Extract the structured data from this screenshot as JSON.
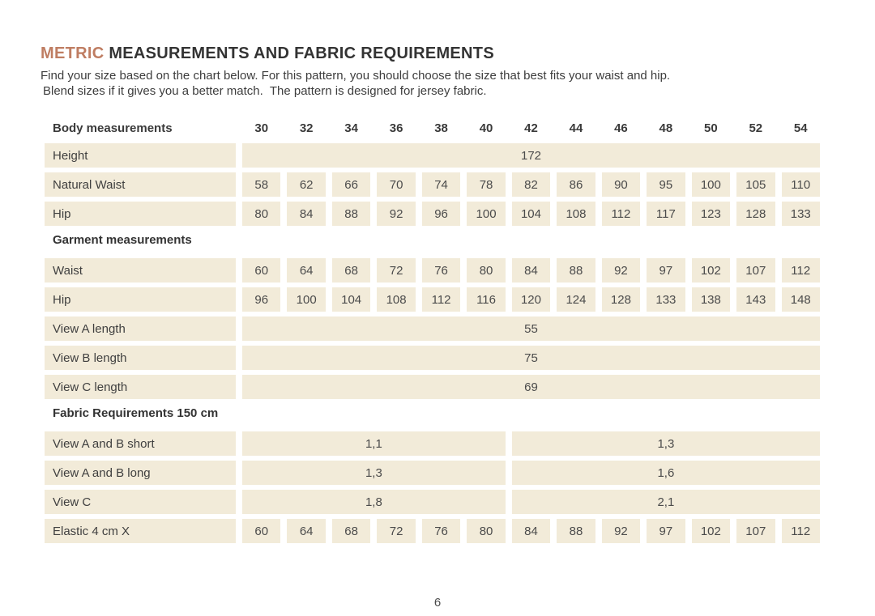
{
  "colors": {
    "accent": "#bf7d62",
    "cell_background": "#f2ebd9",
    "text": "#3d3d3d"
  },
  "title": {
    "highlight": "METRIC",
    "rest": " MEASUREMENTS AND FABRIC REQUIREMENTS"
  },
  "intro": {
    "line1": "Find your size based on the chart below. For this pattern, you should choose the size that best fits your waist and hip.",
    "line2": "Blend sizes if it gives you a better match.  The pattern is designed for jersey fabric."
  },
  "table": {
    "header": {
      "label": "Body measurements",
      "sizes": [
        "30",
        "32",
        "34",
        "36",
        "38",
        "40",
        "42",
        "44",
        "46",
        "48",
        "50",
        "52",
        "54"
      ]
    },
    "rows": [
      {
        "type": "data",
        "name": "height",
        "label": "Height",
        "cells": [
          {
            "span": 13,
            "value": "172"
          }
        ]
      },
      {
        "type": "data",
        "name": "natural-waist",
        "label": "Natural Waist",
        "cells": [
          {
            "value": "58"
          },
          {
            "value": "62"
          },
          {
            "value": "66"
          },
          {
            "value": "70"
          },
          {
            "value": "74"
          },
          {
            "value": "78"
          },
          {
            "value": "82"
          },
          {
            "value": "86"
          },
          {
            "value": "90"
          },
          {
            "value": "95"
          },
          {
            "value": "100"
          },
          {
            "value": "105"
          },
          {
            "value": "110"
          }
        ]
      },
      {
        "type": "data",
        "name": "body-hip",
        "label": "Hip",
        "cells": [
          {
            "value": "80"
          },
          {
            "value": "84"
          },
          {
            "value": "88"
          },
          {
            "value": "92"
          },
          {
            "value": "96"
          },
          {
            "value": "100"
          },
          {
            "value": "104"
          },
          {
            "value": "108"
          },
          {
            "value": "112"
          },
          {
            "value": "117"
          },
          {
            "value": "123"
          },
          {
            "value": "128"
          },
          {
            "value": "133"
          }
        ]
      },
      {
        "type": "section",
        "name": "garment-measurements",
        "label": "Garment measurements"
      },
      {
        "type": "data",
        "name": "garment-waist",
        "label": "Waist",
        "cells": [
          {
            "value": "60"
          },
          {
            "value": "64"
          },
          {
            "value": "68"
          },
          {
            "value": "72"
          },
          {
            "value": "76"
          },
          {
            "value": "80"
          },
          {
            "value": "84"
          },
          {
            "value": "88"
          },
          {
            "value": "92"
          },
          {
            "value": "97"
          },
          {
            "value": "102"
          },
          {
            "value": "107"
          },
          {
            "value": "112"
          }
        ]
      },
      {
        "type": "data",
        "name": "garment-hip",
        "label": "Hip",
        "cells": [
          {
            "value": "96"
          },
          {
            "value": "100"
          },
          {
            "value": "104"
          },
          {
            "value": "108"
          },
          {
            "value": "112"
          },
          {
            "value": "116"
          },
          {
            "value": "120"
          },
          {
            "value": "124"
          },
          {
            "value": "128"
          },
          {
            "value": "133"
          },
          {
            "value": "138"
          },
          {
            "value": "143"
          },
          {
            "value": "148"
          }
        ]
      },
      {
        "type": "data",
        "name": "view-a-length",
        "label": "View A length",
        "cells": [
          {
            "span": 13,
            "value": "55"
          }
        ]
      },
      {
        "type": "data",
        "name": "view-b-length",
        "label": "View B length",
        "cells": [
          {
            "span": 13,
            "value": "75"
          }
        ]
      },
      {
        "type": "data",
        "name": "view-c-length",
        "label": "View C length",
        "cells": [
          {
            "span": 13,
            "value": "69"
          }
        ]
      },
      {
        "type": "section",
        "name": "fabric-requirements",
        "label": "Fabric Requirements 150 cm"
      },
      {
        "type": "data",
        "name": "view-ab-short",
        "label": "View A and B  short",
        "cells": [
          {
            "span": 6,
            "value": "1,1"
          },
          {
            "span": 7,
            "value": "1,3"
          }
        ]
      },
      {
        "type": "data",
        "name": "view-ab-long",
        "label": "View A and B long",
        "cells": [
          {
            "span": 6,
            "value": "1,3"
          },
          {
            "span": 7,
            "value": "1,6"
          }
        ]
      },
      {
        "type": "data",
        "name": "view-c-fabric",
        "label": "View C",
        "cells": [
          {
            "span": 6,
            "value": "1,8"
          },
          {
            "span": 7,
            "value": "2,1"
          }
        ]
      },
      {
        "type": "data",
        "name": "elastic",
        "label": "Elastic 4 cm X",
        "cells": [
          {
            "value": "60"
          },
          {
            "value": "64"
          },
          {
            "value": "68"
          },
          {
            "value": "72"
          },
          {
            "value": "76"
          },
          {
            "value": "80"
          },
          {
            "value": "84"
          },
          {
            "value": "88"
          },
          {
            "value": "92"
          },
          {
            "value": "97"
          },
          {
            "value": "102"
          },
          {
            "value": "107"
          },
          {
            "value": "112"
          }
        ]
      }
    ]
  },
  "page_number": "6"
}
